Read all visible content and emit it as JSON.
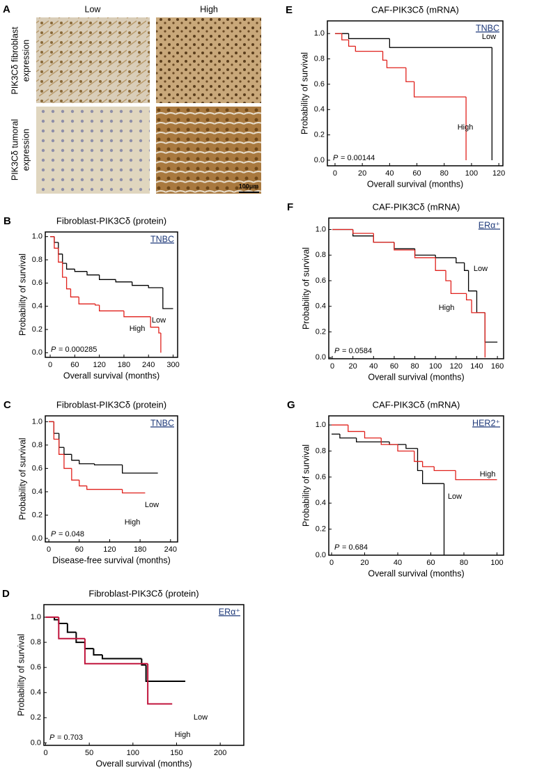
{
  "panel_a": {
    "label": "A",
    "columns": [
      "Low",
      "High"
    ],
    "rows": [
      [
        "PIK3Cδ fibroblast",
        "expression"
      ],
      [
        "PIK3Cδ tumoral",
        "expression"
      ]
    ],
    "scale_bar": "100μm"
  },
  "chart_data": [
    {
      "type": "step",
      "panel": "B",
      "title": "Fibroblast-PIK3Cδ (protein)",
      "tag": "TNBC",
      "xlabel": "Overall survival (months)",
      "ylabel": "Probability of survival",
      "p_symbol": "P",
      "p_value": "= 0.000285",
      "xlim": [
        -12,
        311
      ],
      "ylim": [
        -0.04,
        1.04
      ],
      "xticks": [
        0,
        60,
        120,
        180,
        240,
        300
      ],
      "yticks": [
        {
          "value": 0,
          "label": "0.0"
        },
        0.2,
        0.4,
        0.6,
        0.8,
        {
          "value": 1,
          "label": "1.0"
        }
      ],
      "series": [
        {
          "name": "Low",
          "color": "#000000",
          "x": [
            0,
            10,
            20,
            30,
            40,
            60,
            90,
            120,
            160,
            200,
            240,
            275,
            300
          ],
          "values": [
            1.0,
            0.95,
            0.85,
            0.77,
            0.72,
            0.7,
            0.67,
            0.63,
            0.61,
            0.58,
            0.56,
            0.38,
            0.38
          ]
        },
        {
          "name": "High",
          "color": "#e0201b",
          "x": [
            0,
            10,
            20,
            30,
            40,
            50,
            70,
            110,
            120,
            180,
            245,
            265,
            270
          ],
          "values": [
            1.0,
            0.9,
            0.78,
            0.65,
            0.55,
            0.48,
            0.42,
            0.41,
            0.36,
            0.31,
            0.22,
            0.17,
            0.0
          ]
        }
      ]
    },
    {
      "type": "step",
      "panel": "C",
      "title": "Fibroblast-PIK3Cδ (protein)",
      "tag": "TNBC",
      "xlabel": "Disease-free survival (months)",
      "ylabel": "Probability of survival",
      "p_symbol": "P",
      "p_value": "= 0.048",
      "xlim": [
        -7,
        254
      ],
      "ylim": [
        -0.03,
        1.05
      ],
      "xticks": [
        0,
        60,
        120,
        180,
        240
      ],
      "yticks": [
        {
          "value": 0,
          "label": "0.0"
        },
        0.2,
        0.4,
        0.6,
        0.8,
        {
          "value": 1,
          "label": "1.0"
        }
      ],
      "series": [
        {
          "name": "Low",
          "color": "#000000",
          "x": [
            0,
            10,
            20,
            30,
            45,
            60,
            90,
            145,
            215
          ],
          "values": [
            1.0,
            0.9,
            0.78,
            0.72,
            0.67,
            0.64,
            0.63,
            0.56,
            0.56
          ]
        },
        {
          "name": "High",
          "color": "#e0201b",
          "x": [
            0,
            10,
            20,
            30,
            45,
            60,
            75,
            145,
            190
          ],
          "values": [
            1.0,
            0.85,
            0.72,
            0.6,
            0.5,
            0.45,
            0.42,
            0.39,
            0.39
          ]
        }
      ]
    },
    {
      "type": "step",
      "panel": "D",
      "title": "Fibroblast-PIK3Cδ (protein)",
      "tag": "ERα⁺",
      "xlabel": "Overall survival (months)",
      "ylabel": "Probability of survival",
      "p_symbol": "P",
      "p_value": "= 0.703",
      "xlim": [
        -2,
        227
      ],
      "ylim": [
        -0.02,
        1.1
      ],
      "xticks": [
        0,
        50,
        100,
        150,
        200
      ],
      "yticks": [
        {
          "value": 0,
          "label": "0.0"
        },
        0.2,
        0.4,
        0.6,
        0.8,
        {
          "value": 1,
          "label": "1.0"
        }
      ],
      "series": [
        {
          "name": "Low",
          "color": "#000000",
          "x": [
            0,
            10,
            15,
            25,
            35,
            45,
            55,
            65,
            110,
            115,
            160
          ],
          "values": [
            1.0,
            0.98,
            0.95,
            0.88,
            0.8,
            0.75,
            0.7,
            0.67,
            0.62,
            0.49,
            0.49
          ]
        },
        {
          "name": "High",
          "color": "#c0143c",
          "x": [
            0,
            15,
            45,
            117,
            145
          ],
          "values": [
            1.0,
            0.83,
            0.63,
            0.31,
            0.31
          ]
        }
      ]
    },
    {
      "type": "step",
      "panel": "E",
      "title": "CAF-PIK3Cδ (mRNA)",
      "tag": "TNBC",
      "xlabel": "Overall survival (months)",
      "ylabel": "Probability of survival",
      "p_symbol": "P",
      "p_value": "= 0.00144",
      "xlim": [
        -5.6,
        123
      ],
      "ylim": [
        -0.044,
        1.1
      ],
      "xticks": [
        0,
        20,
        40,
        60,
        80,
        100,
        120
      ],
      "yticks": [
        {
          "value": 0,
          "label": "0.0"
        },
        0.2,
        0.4,
        0.6,
        0.8,
        {
          "value": 1,
          "label": "1.0"
        }
      ],
      "series": [
        {
          "name": "Low",
          "color": "#000000",
          "x": [
            0,
            10,
            40,
            115
          ],
          "values": [
            1.0,
            0.96,
            0.89,
            0.0
          ]
        },
        {
          "name": "High",
          "color": "#e0201b",
          "x": [
            0,
            5,
            10,
            15,
            35,
            38,
            52,
            58,
            96
          ],
          "values": [
            1.0,
            0.95,
            0.9,
            0.86,
            0.79,
            0.73,
            0.62,
            0.5,
            0.0
          ]
        }
      ]
    },
    {
      "type": "step",
      "panel": "F",
      "title": "CAF-PIK3Cδ (mRNA)",
      "tag": "ERα⁺",
      "xlabel": "Overall survival (months)",
      "ylabel": "Probability of survival",
      "p_symbol": "P",
      "p_value": "= 0.0584",
      "xlim": [
        -3.4,
        166
      ],
      "ylim": [
        -0.01,
        1.09
      ],
      "xticks": [
        0,
        20,
        40,
        60,
        80,
        100,
        120,
        140,
        160
      ],
      "yticks": [
        {
          "value": 0,
          "label": "0.0"
        },
        0.2,
        0.4,
        0.6,
        0.8,
        {
          "value": 1,
          "label": "1.0"
        }
      ],
      "series": [
        {
          "name": "Low",
          "color": "#000000",
          "x": [
            0,
            20,
            40,
            60,
            80,
            100,
            120,
            128,
            132,
            140,
            148,
            160
          ],
          "values": [
            1.0,
            0.95,
            0.9,
            0.85,
            0.8,
            0.78,
            0.74,
            0.68,
            0.52,
            0.35,
            0.12,
            0.12
          ]
        },
        {
          "name": "High",
          "color": "#e0201b",
          "x": [
            0,
            20,
            40,
            60,
            80,
            100,
            110,
            115,
            130,
            135,
            148
          ],
          "values": [
            1.0,
            0.97,
            0.9,
            0.84,
            0.78,
            0.68,
            0.6,
            0.5,
            0.45,
            0.35,
            0.0
          ]
        }
      ]
    },
    {
      "type": "step",
      "panel": "G",
      "title": "CAF-PIK3Cδ (mRNA)",
      "tag": "HER2⁺",
      "xlabel": "Overall survival (months)",
      "ylabel": "Probability of survival",
      "p_symbol": "P",
      "p_value": "= 0.684",
      "xlim": [
        -1.7,
        104
      ],
      "ylim": [
        0,
        1.07
      ],
      "xticks": [
        0,
        20,
        40,
        60,
        80,
        100
      ],
      "yticks": [
        {
          "value": 0,
          "label": "0.0"
        },
        0.2,
        0.4,
        0.6,
        0.8,
        {
          "value": 1,
          "label": "1.0"
        }
      ],
      "series": [
        {
          "name": "Low",
          "color": "#000000",
          "x": [
            0,
            5,
            15,
            35,
            45,
            52,
            55,
            68
          ],
          "values": [
            0.93,
            0.9,
            0.87,
            0.85,
            0.82,
            0.65,
            0.55,
            0.0
          ]
        },
        {
          "name": "High",
          "color": "#e0201b",
          "x": [
            0,
            10,
            20,
            30,
            40,
            50,
            55,
            62,
            75,
            100
          ],
          "values": [
            1.0,
            0.95,
            0.9,
            0.85,
            0.8,
            0.72,
            0.68,
            0.65,
            0.58,
            0.58
          ]
        }
      ]
    }
  ]
}
